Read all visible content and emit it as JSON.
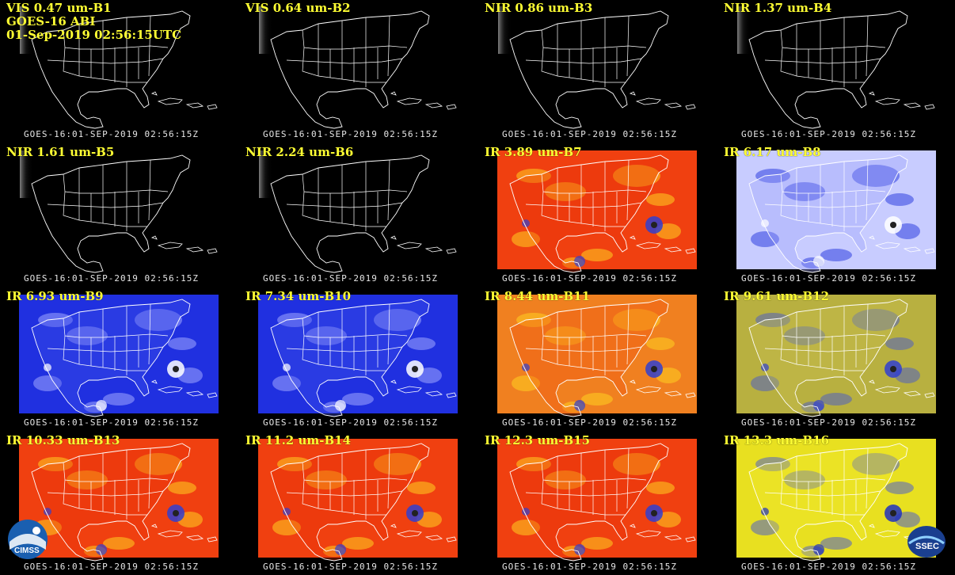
{
  "header": {
    "line2": "GOES-16 ABI",
    "line3": "01-Sep-2019 02:56:15UTC"
  },
  "panels": [
    {
      "label": "VIS 0.47 um-B1",
      "footer": "GOES-16:01-SEP-2019 02:56:15Z",
      "style": "vis"
    },
    {
      "label": "VIS 0.64 um-B2",
      "footer": "GOES-16:01-SEP-2019 02:56:15Z",
      "style": "vis"
    },
    {
      "label": "NIR 0.86 um-B3",
      "footer": "GOES-16:01-SEP-2019 02:56:15Z",
      "style": "vis"
    },
    {
      "label": "NIR 1.37 um-B4",
      "footer": "GOES-16:01-SEP-2019 02:56:15Z",
      "style": "vis"
    },
    {
      "label": "NIR 1.61 um-B5",
      "footer": "GOES-16:01-SEP-2019 02:56:15Z",
      "style": "vis"
    },
    {
      "label": "NIR 2.24 um-B6",
      "footer": "GOES-16:01-SEP-2019 02:56:15Z",
      "style": "vis"
    },
    {
      "label": "IR 3.89 um-B7",
      "footer": "GOES-16:01-SEP-2019 02:56:15Z",
      "style": "ir-red"
    },
    {
      "label": "IR 6.17 um-B8",
      "footer": "GOES-16:01-SEP-2019 02:56:15Z",
      "style": "wv-light"
    },
    {
      "label": "IR 6.93 um-B9",
      "footer": "GOES-16:01-SEP-2019 02:56:15Z",
      "style": "wv-blue"
    },
    {
      "label": "IR 7.34 um-B10",
      "footer": "GOES-16:01-SEP-2019 02:56:15Z",
      "style": "wv-blue"
    },
    {
      "label": "IR 8.44 um-B11",
      "footer": "GOES-16:01-SEP-2019 02:56:15Z",
      "style": "ir-orange"
    },
    {
      "label": "IR 9.61 um-B12",
      "footer": "GOES-16:01-SEP-2019 02:56:15Z",
      "style": "ir-olive"
    },
    {
      "label": "IR 10.33 um-B13",
      "footer": "GOES-16:01-SEP-2019 02:56:15Z",
      "style": "ir-red"
    },
    {
      "label": "IR 11.2 um-B14",
      "footer": "GOES-16:01-SEP-2019 02:56:15Z",
      "style": "ir-red"
    },
    {
      "label": "IR 12.3 um-B15",
      "footer": "GOES-16:01-SEP-2019 02:56:15Z",
      "style": "ir-red"
    },
    {
      "label": "IR 13.3 um-B16",
      "footer": "GOES-16:01-SEP-2019 02:56:15Z",
      "style": "ir-yellow"
    }
  ],
  "logos": {
    "left": "CIMSS",
    "right": "SSEC"
  },
  "colors": {
    "label": "#ffff33",
    "map_lines": "#ffffff"
  }
}
